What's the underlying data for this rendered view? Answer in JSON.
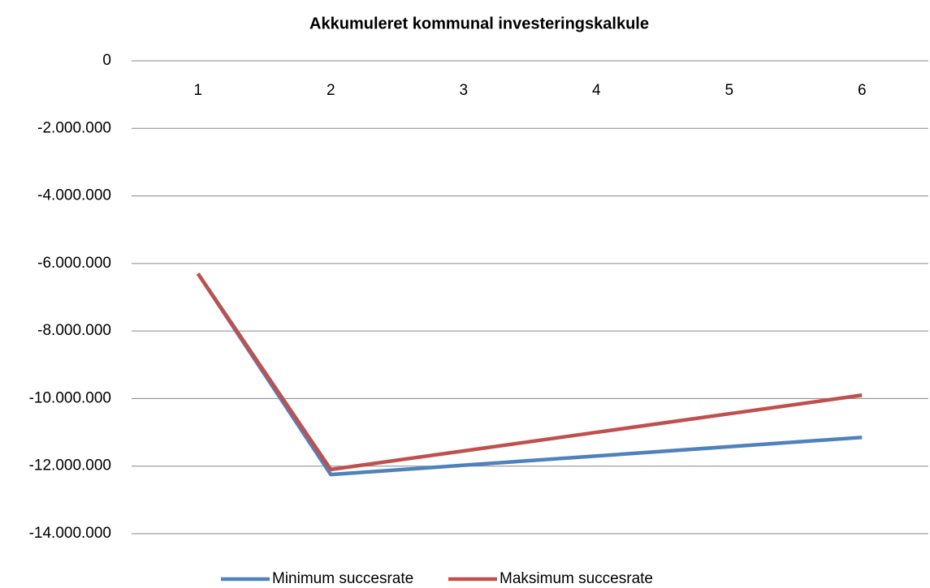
{
  "chart_data": {
    "type": "line",
    "title": "Akkumuleret kommunal investeringskalkule",
    "categories": [
      "1",
      "2",
      "3",
      "4",
      "5",
      "6"
    ],
    "series": [
      {
        "name": "Minimum succesrate",
        "color": "#4f81bd",
        "values": [
          -6300000,
          -12250000,
          -11975000,
          -11700000,
          -11425000,
          -11150000
        ]
      },
      {
        "name": "Maksimum succesrate",
        "color": "#c0504d",
        "values": [
          -6300000,
          -12100000,
          -11550000,
          -11000000,
          -10450000,
          -9900000
        ]
      }
    ],
    "ylim": [
      -14000000,
      0
    ],
    "yticks": [
      {
        "value": -14000000,
        "label": "-14.000.000"
      },
      {
        "value": -12000000,
        "label": "-12.000.000"
      },
      {
        "value": -10000000,
        "label": "-10.000.000"
      },
      {
        "value": -8000000,
        "label": "-8.000.000"
      },
      {
        "value": -6000000,
        "label": "-6.000.000"
      },
      {
        "value": -4000000,
        "label": "-4.000.000"
      },
      {
        "value": -2000000,
        "label": "-2.000.000"
      },
      0
    ],
    "grid": true,
    "legend": "bottom"
  }
}
